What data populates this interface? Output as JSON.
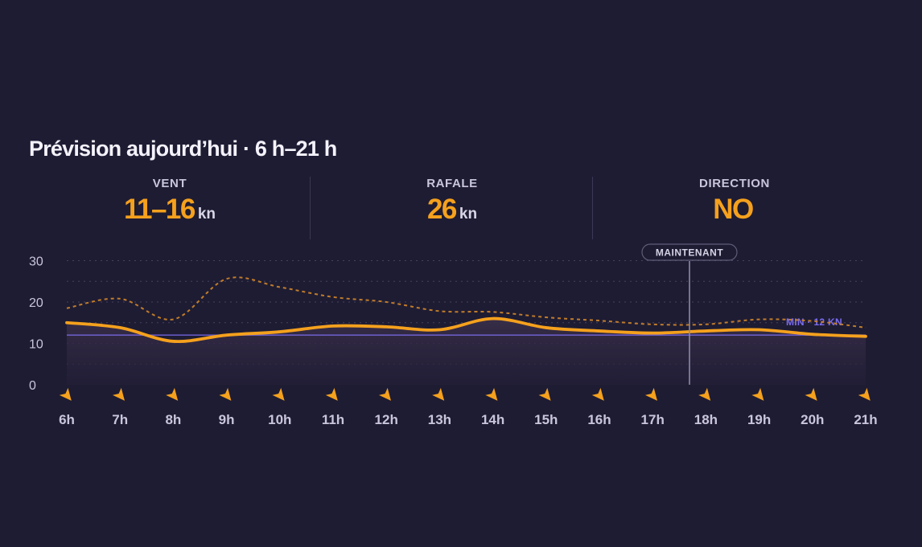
{
  "title": "Prévision aujourd’hui · 6 h–21 h",
  "stats": [
    {
      "label": "VENT",
      "value": "11–16",
      "unit": "kn"
    },
    {
      "label": "RAFALE",
      "value": "26",
      "unit": "kn"
    },
    {
      "label": "DIRECTION",
      "value": "NO",
      "unit": ""
    }
  ],
  "colors": {
    "background": "#1e1c33",
    "wind": "#f5a11d",
    "gust": "#c9822a",
    "minimum": "#7b6cf0",
    "now_marker": "#8c8aa3"
  },
  "chart_data": {
    "type": "line",
    "x": [
      "6h",
      "7h",
      "8h",
      "9h",
      "10h",
      "11h",
      "12h",
      "13h",
      "14h",
      "15h",
      "16h",
      "17h",
      "18h",
      "19h",
      "20h",
      "21h"
    ],
    "ylim": [
      0,
      30
    ],
    "yticks": [
      0,
      10,
      20,
      30
    ],
    "grid": true,
    "series": [
      {
        "key": "wind",
        "style": "solid",
        "values": [
          15,
          13.8,
          10.5,
          12,
          12.8,
          14.2,
          14,
          13.3,
          16,
          13.8,
          13,
          12.5,
          13,
          13.3,
          12.2,
          11.7
        ]
      },
      {
        "key": "gust",
        "style": "dashed",
        "values": [
          18.5,
          20.8,
          15.8,
          25.6,
          23.6,
          21.2,
          20,
          17.8,
          17.6,
          16.3,
          15.5,
          14.6,
          14.6,
          15.8,
          15.4,
          13.8
        ]
      }
    ],
    "min_line": {
      "label": "MIN · 12 KN",
      "value": 12
    },
    "now_marker": {
      "label": "MAINTENANT",
      "x": "17h45"
    },
    "wind_arrow_icon": "arrow-southeast-icon"
  }
}
